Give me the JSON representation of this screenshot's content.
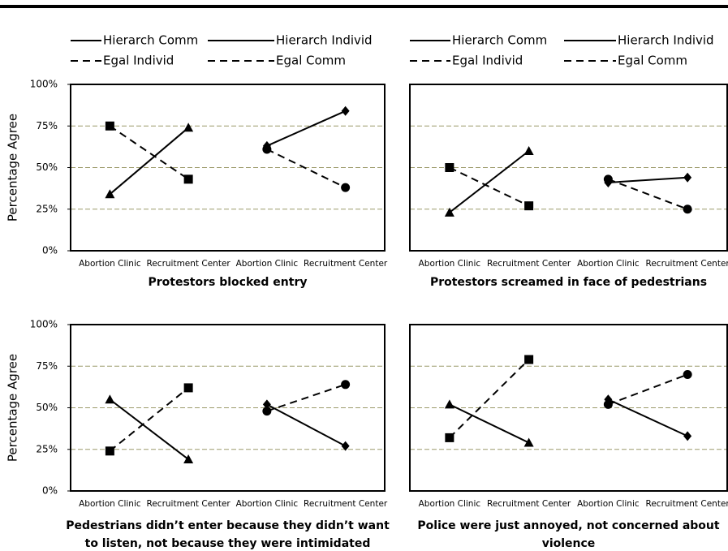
{
  "chart_data": [
    {
      "type": "line",
      "title": "Protestors blocked entry",
      "ylabel": "Percentage Agree",
      "categories": [
        "Abortion Clinic",
        "Recruitment Center",
        "Abortion Clinic",
        "Recruitment Center"
      ],
      "ylim": [
        0,
        100
      ],
      "yticks": [
        {
          "value": 0,
          "label": "0%"
        },
        {
          "value": 25,
          "label": "25%"
        },
        {
          "value": 50,
          "label": "50%"
        },
        {
          "value": 75,
          "label": "75%"
        },
        {
          "value": 100,
          "label": "100%"
        }
      ],
      "legend": true,
      "series": [
        {
          "name": "Hierarch Comm",
          "color": "#000000",
          "style": "solid",
          "marker": "triangle",
          "values": [
            34,
            74,
            null,
            null
          ]
        },
        {
          "name": "Hierarch Individ",
          "color": "#000000",
          "style": "solid",
          "marker": "diamond",
          "values": [
            null,
            null,
            63,
            84
          ]
        },
        {
          "name": "Egal Individ",
          "color": "#000000",
          "style": "dashed",
          "marker": "square",
          "values": [
            75,
            43,
            null,
            null
          ]
        },
        {
          "name": "Egal Comm",
          "color": "#000000",
          "style": "dashed",
          "marker": "circle",
          "values": [
            null,
            null,
            61,
            38
          ]
        }
      ]
    },
    {
      "type": "line",
      "title": "Protestors screamed in face of pedestrians",
      "categories": [
        "Abortion Clinic",
        "Recruitment Center",
        "Abortion Clinic",
        "Recruitment Center"
      ],
      "ylim": [
        0,
        100
      ],
      "ygrid": [
        25,
        50,
        75
      ],
      "legend": true,
      "series": [
        {
          "name": "Hierarch Comm",
          "color": "#000000",
          "style": "solid",
          "marker": "triangle",
          "values": [
            23,
            60,
            null,
            null
          ]
        },
        {
          "name": "Hierarch Individ",
          "color": "#000000",
          "style": "solid",
          "marker": "diamond",
          "values": [
            null,
            null,
            41,
            44
          ]
        },
        {
          "name": "Egal Individ",
          "color": "#000000",
          "style": "dashed",
          "marker": "square",
          "values": [
            50,
            27,
            null,
            null
          ]
        },
        {
          "name": "Egal Comm",
          "color": "#000000",
          "style": "dashed",
          "marker": "circle",
          "values": [
            null,
            null,
            43,
            25
          ]
        }
      ]
    },
    {
      "type": "line",
      "title": "Pedestrians didn’t enter because they didn’t want to listen, not because they were intimidated",
      "ylabel": "Percentage Agree",
      "categories": [
        "Abortion Clinic",
        "Recruitment Center",
        "Abortion Clinic",
        "Recruitment Center"
      ],
      "ylim": [
        0,
        100
      ],
      "yticks": [
        {
          "value": 0,
          "label": "0%"
        },
        {
          "value": 25,
          "label": "25%"
        },
        {
          "value": 50,
          "label": "50%"
        },
        {
          "value": 75,
          "label": "75%"
        },
        {
          "value": 100,
          "label": "100%"
        }
      ],
      "legend": false,
      "series": [
        {
          "name": "Hierarch Comm",
          "color": "#000000",
          "style": "solid",
          "marker": "triangle",
          "values": [
            55,
            19,
            null,
            null
          ]
        },
        {
          "name": "Hierarch Individ",
          "color": "#000000",
          "style": "solid",
          "marker": "diamond",
          "values": [
            null,
            null,
            52,
            27
          ]
        },
        {
          "name": "Egal Individ",
          "color": "#000000",
          "style": "dashed",
          "marker": "square",
          "values": [
            24,
            62,
            null,
            null
          ]
        },
        {
          "name": "Egal Comm",
          "color": "#000000",
          "style": "dashed",
          "marker": "circle",
          "values": [
            null,
            null,
            48,
            64
          ]
        }
      ]
    },
    {
      "type": "line",
      "title": "Police were just annoyed, not concerned about violence",
      "categories": [
        "Abortion Clinic",
        "Recruitment Center",
        "Abortion Clinic",
        "Recruitment Center"
      ],
      "ylim": [
        0,
        100
      ],
      "ygrid": [
        25,
        50,
        75
      ],
      "legend": false,
      "series": [
        {
          "name": "Hierarch Comm",
          "color": "#000000",
          "style": "solid",
          "marker": "triangle",
          "values": [
            52,
            29,
            null,
            null
          ]
        },
        {
          "name": "Hierarch Individ",
          "color": "#000000",
          "style": "solid",
          "marker": "diamond",
          "values": [
            null,
            null,
            55,
            33
          ]
        },
        {
          "name": "Egal Individ",
          "color": "#000000",
          "style": "dashed",
          "marker": "square",
          "values": [
            32,
            79,
            null,
            null
          ]
        },
        {
          "name": "Egal Comm",
          "color": "#000000",
          "style": "dashed",
          "marker": "circle",
          "values": [
            null,
            null,
            52,
            70
          ]
        }
      ]
    }
  ]
}
